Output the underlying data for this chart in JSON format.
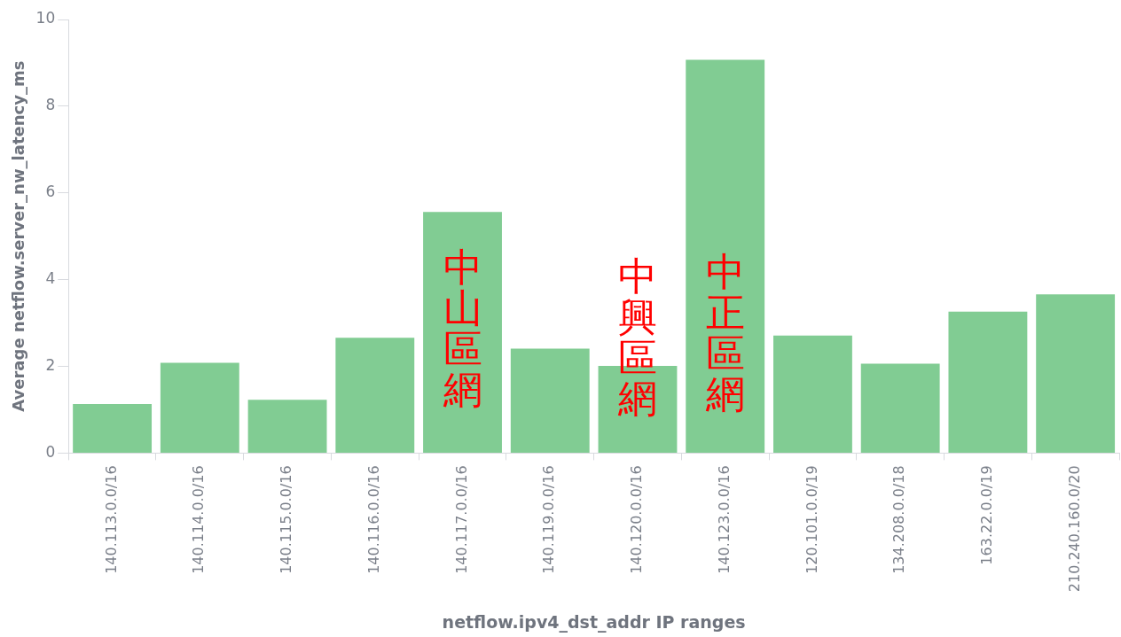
{
  "chart_data": {
    "type": "bar",
    "xlabel": "netflow.ipv4_dst_addr IP ranges",
    "ylabel": "Average netflow.server_nw_latency_ms",
    "categories": [
      "140.113.0.0/16",
      "140.114.0.0/16",
      "140.115.0.0/16",
      "140.116.0.0/16",
      "140.117.0.0/16",
      "140.119.0.0/16",
      "140.120.0.0/16",
      "140.123.0.0/16",
      "120.101.0.0/19",
      "134.208.0.0/18",
      "163.22.0.0/19",
      "210.240.160.0/20"
    ],
    "values": [
      1.13,
      2.08,
      1.23,
      2.66,
      5.56,
      2.41,
      2.01,
      9.07,
      2.71,
      2.06,
      3.26,
      3.66
    ],
    "color": "#81cc93",
    "ylim": [
      0,
      10
    ],
    "yticks": [
      0,
      2,
      4,
      6,
      8,
      10
    ],
    "grid": false,
    "legend": false,
    "annotations": [
      "中山區網",
      "中興區網",
      "中正區網"
    ]
  }
}
